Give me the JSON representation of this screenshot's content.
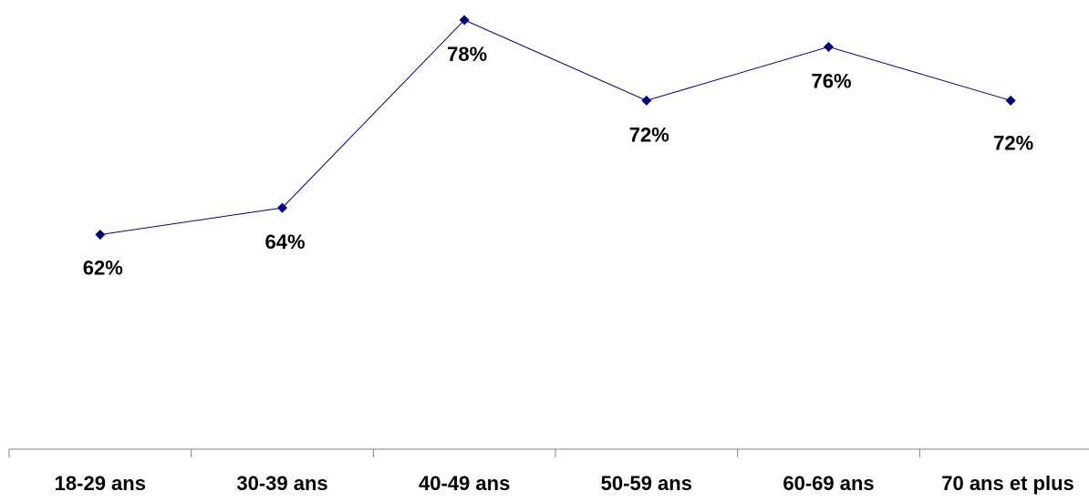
{
  "chart_data": {
    "type": "line",
    "categories": [
      "18-29 ans",
      "30-39 ans",
      "40-49 ans",
      "50-59 ans",
      "60-69 ans",
      "70 ans et plus"
    ],
    "series": [
      {
        "values": [
          62,
          64,
          78,
          72,
          76,
          72
        ],
        "labels": [
          "62%",
          "64%",
          "78%",
          "72%",
          "76%",
          "72%"
        ]
      }
    ],
    "ylim": [
      46,
      78
    ],
    "grid": false,
    "legend": "none",
    "colors": {
      "line": "#000080",
      "marker": "#000080",
      "axis": "#808080",
      "text": "#000000"
    }
  }
}
